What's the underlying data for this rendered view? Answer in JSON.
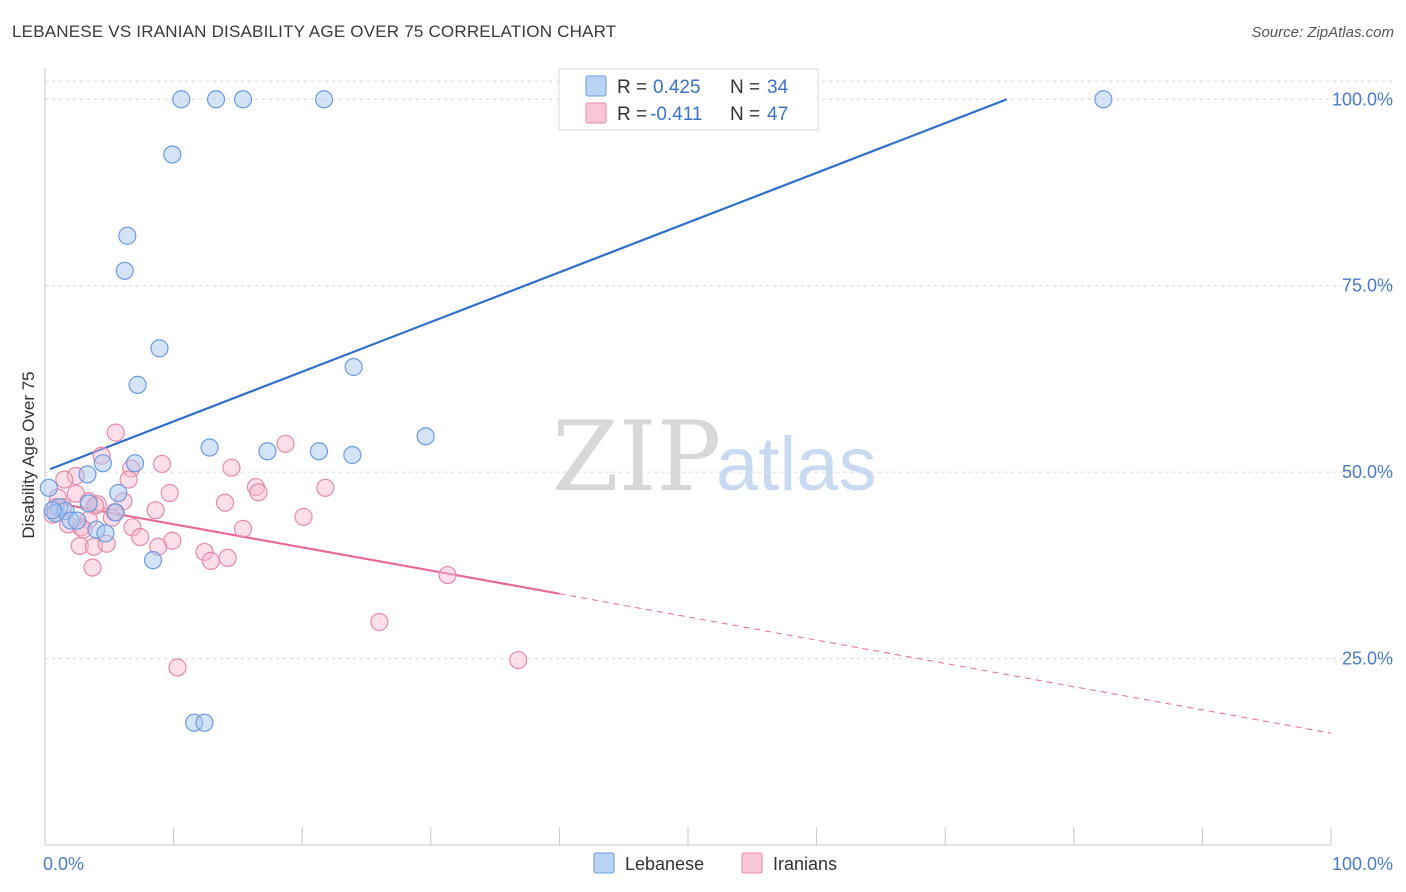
{
  "header": {
    "title": "LEBANESE VS IRANIAN DISABILITY AGE OVER 75 CORRELATION CHART",
    "source": "Source: ZipAtlas.com"
  },
  "watermark": {
    "zip": "ZIP",
    "atlas": "atlas"
  },
  "legend": {
    "r_label": "R = ",
    "n_label": "N = ",
    "rows": [
      {
        "name": "Lebanese",
        "r": "0.425",
        "n": "34"
      },
      {
        "name": "Iranians",
        "r": "-0.411",
        "n": "47"
      }
    ]
  },
  "colors": {
    "lebanese_fill": "#a9c8f0",
    "lebanese_stroke": "#6b9be0",
    "lebanese_line": "#2f6fcc",
    "iranians_fill": "#f8b8cc",
    "iranians_stroke": "#e88aa8",
    "iranians_line": "#e86a94",
    "grid": "#d6d6d6",
    "axis_text": "#4a7cc7"
  },
  "chart_data": {
    "type": "scatter",
    "title": "LEBANESE VS IRANIAN DISABILITY AGE OVER 75 CORRELATION CHART",
    "xlabel": "",
    "ylabel": "Disability Age Over 75",
    "xlim": [
      0,
      100
    ],
    "ylim": [
      0,
      105
    ],
    "x_tick_labels": [
      "0.0%",
      "100.0%"
    ],
    "y_ticks": [
      25,
      50,
      75,
      100
    ],
    "y_tick_labels": [
      "25.0%",
      "50.0%",
      "75.0%",
      "100.0%"
    ],
    "grid": true,
    "legend_position": "top-center",
    "series": [
      {
        "name": "Lebanese",
        "points": [
          [
            10.6,
            100
          ],
          [
            13.3,
            100
          ],
          [
            15.4,
            100
          ],
          [
            21.7,
            100
          ],
          [
            82.3,
            100
          ],
          [
            9.9,
            92.6
          ],
          [
            6.4,
            81.7
          ],
          [
            6.2,
            77.0
          ],
          [
            8.9,
            66.6
          ],
          [
            7.2,
            61.7
          ],
          [
            24.0,
            64.1
          ],
          [
            29.6,
            54.8
          ],
          [
            12.8,
            53.3
          ],
          [
            17.3,
            52.8
          ],
          [
            21.3,
            52.8
          ],
          [
            23.9,
            52.3
          ],
          [
            7.0,
            51.2
          ],
          [
            4.5,
            51.2
          ],
          [
            3.3,
            49.7
          ],
          [
            5.7,
            47.2
          ],
          [
            0.3,
            47.9
          ],
          [
            1.1,
            45.3
          ],
          [
            0.8,
            44.5
          ],
          [
            1.6,
            44.8
          ],
          [
            3.4,
            45.8
          ],
          [
            5.5,
            44.6
          ],
          [
            2.0,
            43.5
          ],
          [
            2.5,
            43.5
          ],
          [
            4.0,
            42.3
          ],
          [
            4.7,
            41.8
          ],
          [
            8.4,
            38.2
          ],
          [
            11.6,
            16.4
          ],
          [
            12.4,
            16.4
          ],
          [
            0.6,
            44.9
          ]
        ],
        "trend": {
          "x": [
            0.4,
            74.8
          ],
          "y": [
            50.4,
            100
          ]
        }
      },
      {
        "name": "Iranians",
        "points": [
          [
            5.5,
            55.3
          ],
          [
            18.7,
            53.8
          ],
          [
            4.4,
            52.2
          ],
          [
            9.1,
            51.1
          ],
          [
            6.7,
            50.5
          ],
          [
            14.5,
            50.6
          ],
          [
            2.4,
            49.5
          ],
          [
            1.5,
            49.0
          ],
          [
            6.5,
            49.0
          ],
          [
            16.4,
            48.0
          ],
          [
            21.8,
            47.9
          ],
          [
            16.6,
            47.3
          ],
          [
            9.7,
            47.2
          ],
          [
            2.4,
            47.1
          ],
          [
            1.0,
            46.6
          ],
          [
            3.4,
            46.1
          ],
          [
            6.1,
            46.1
          ],
          [
            14.0,
            45.9
          ],
          [
            4.1,
            45.7
          ],
          [
            1.4,
            45.3
          ],
          [
            0.8,
            45.3
          ],
          [
            8.6,
            44.9
          ],
          [
            5.4,
            44.6
          ],
          [
            0.6,
            44.3
          ],
          [
            5.2,
            43.9
          ],
          [
            3.4,
            43.6
          ],
          [
            20.1,
            44.0
          ],
          [
            1.8,
            43.0
          ],
          [
            2.8,
            42.6
          ],
          [
            15.4,
            42.4
          ],
          [
            6.8,
            42.6
          ],
          [
            3.0,
            42.3
          ],
          [
            7.4,
            41.3
          ],
          [
            9.9,
            40.8
          ],
          [
            2.7,
            40.1
          ],
          [
            3.8,
            40.0
          ],
          [
            4.8,
            40.4
          ],
          [
            8.8,
            40.0
          ],
          [
            12.4,
            39.3
          ],
          [
            14.2,
            38.5
          ],
          [
            12.9,
            38.1
          ],
          [
            3.7,
            37.2
          ],
          [
            31.3,
            36.2
          ],
          [
            26.0,
            29.9
          ],
          [
            36.8,
            24.8
          ],
          [
            10.3,
            23.8
          ],
          [
            3.9,
            45.5
          ]
        ],
        "trend": {
          "x": [
            0.4,
            40.0
          ],
          "y": [
            46.0,
            33.7
          ]
        },
        "trend_extended": {
          "x": [
            40.0,
            100
          ],
          "y": [
            33.7,
            15.0
          ]
        }
      }
    ]
  }
}
